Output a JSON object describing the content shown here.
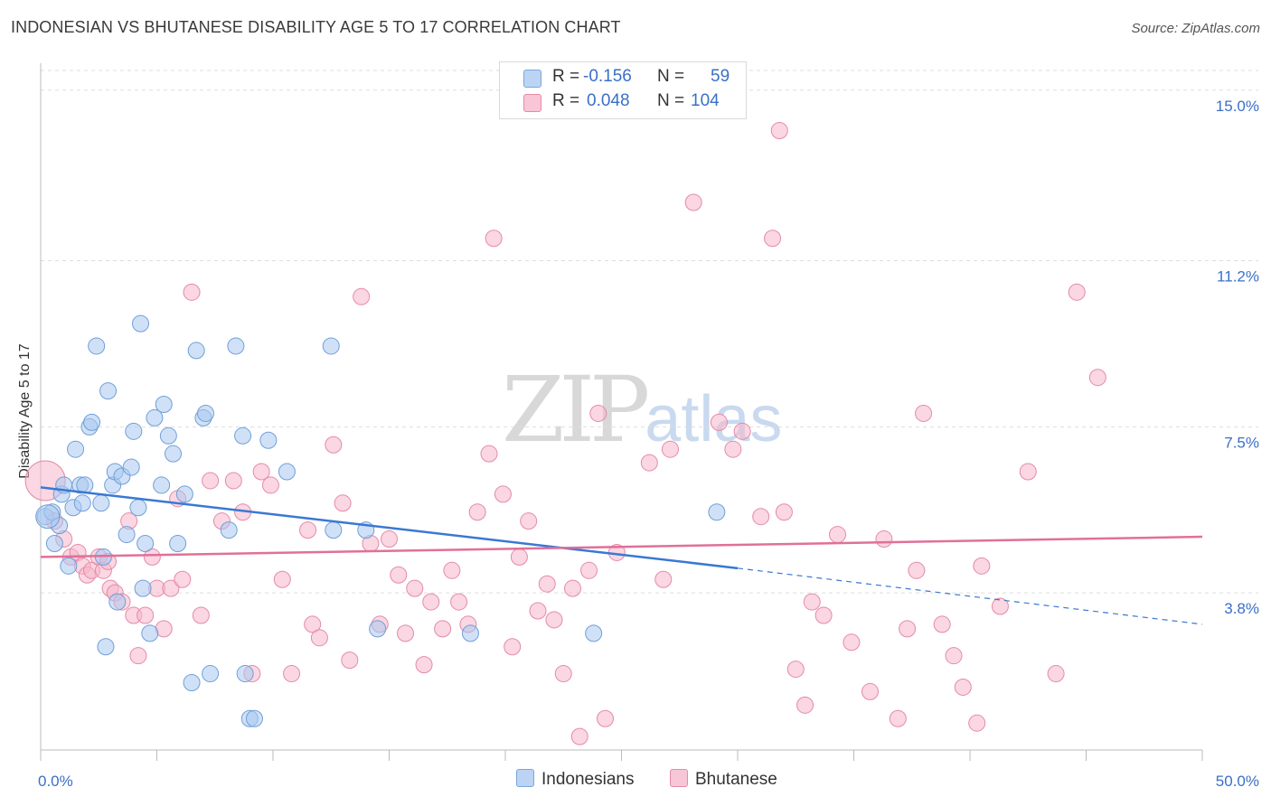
{
  "header": {
    "title": "INDONESIAN VS BHUTANESE DISABILITY AGE 5 TO 17 CORRELATION CHART",
    "source": "Source: ZipAtlas.com"
  },
  "watermark": {
    "zip": "ZIP",
    "atlas": "atlas"
  },
  "legend": {
    "rows": [
      {
        "r_label": "R =",
        "r_value": "-0.156",
        "n_label": "N =",
        "n_value": "59"
      },
      {
        "r_label": "R =",
        "r_value": "0.048",
        "n_label": "N =",
        "n_value": "104"
      }
    ]
  },
  "bottom_legend": {
    "indonesians": "Indonesians",
    "bhutanese": "Bhutanese"
  },
  "colors": {
    "indonesians_fill": "#a9c8f0",
    "indonesians_stroke": "#6f9fd8",
    "indonesians_line": "#3a78d4",
    "bhutanese_fill": "#f5b7ca",
    "bhutanese_stroke": "#e58aa8",
    "bhutanese_line": "#e0709a",
    "tick_label": "#3a6fc8",
    "grid": "#dddddd"
  },
  "chart_data": {
    "type": "scatter",
    "title": "INDONESIAN VS BHUTANESE DISABILITY AGE 5 TO 17 CORRELATION CHART",
    "xlabel": "",
    "ylabel": "Disability Age 5 to 17",
    "xlim": [
      0,
      50
    ],
    "ylim": [
      0.3,
      15.6
    ],
    "x_tick_labels": [
      {
        "value": 0,
        "label": "0.0%"
      },
      {
        "value": 50,
        "label": "50.0%"
      }
    ],
    "y_tick_labels": [
      {
        "value": 3.8,
        "label": "3.8%"
      },
      {
        "value": 7.5,
        "label": "7.5%"
      },
      {
        "value": 11.2,
        "label": "11.2%"
      },
      {
        "value": 15.0,
        "label": "15.0%"
      }
    ],
    "grid": "horizontal dashed",
    "legend_position": "top-center",
    "series": [
      {
        "name": "Indonesians",
        "r": -0.156,
        "n": 59,
        "trend": {
          "x0": 0,
          "y0": 6.15,
          "x1": 30,
          "y1": 4.35,
          "dashed_to_x": 50,
          "dashed_to_y": 3.1
        },
        "points": [
          [
            0.2,
            5.5
          ],
          [
            0.5,
            5.6
          ],
          [
            0.6,
            4.9
          ],
          [
            0.8,
            5.3
          ],
          [
            0.9,
            6.0
          ],
          [
            1.0,
            6.2
          ],
          [
            1.2,
            4.4
          ],
          [
            1.4,
            5.7
          ],
          [
            1.5,
            7.0
          ],
          [
            1.7,
            6.2
          ],
          [
            1.8,
            5.8
          ],
          [
            1.9,
            6.2
          ],
          [
            2.1,
            7.5
          ],
          [
            2.2,
            7.6
          ],
          [
            2.4,
            9.3
          ],
          [
            2.6,
            5.8
          ],
          [
            2.7,
            4.6
          ],
          [
            2.8,
            2.6
          ],
          [
            2.9,
            8.3
          ],
          [
            3.1,
            6.2
          ],
          [
            3.2,
            6.5
          ],
          [
            3.3,
            3.6
          ],
          [
            3.5,
            6.4
          ],
          [
            3.7,
            5.1
          ],
          [
            3.9,
            6.6
          ],
          [
            4.0,
            7.4
          ],
          [
            4.2,
            5.7
          ],
          [
            4.3,
            9.8
          ],
          [
            4.4,
            3.9
          ],
          [
            4.5,
            4.9
          ],
          [
            4.7,
            2.9
          ],
          [
            4.9,
            7.7
          ],
          [
            5.2,
            6.2
          ],
          [
            5.3,
            8.0
          ],
          [
            5.5,
            7.3
          ],
          [
            5.7,
            6.9
          ],
          [
            5.9,
            4.9
          ],
          [
            6.2,
            6.0
          ],
          [
            6.5,
            1.8
          ],
          [
            6.7,
            9.2
          ],
          [
            7.0,
            7.7
          ],
          [
            7.1,
            7.8
          ],
          [
            7.3,
            2.0
          ],
          [
            8.1,
            5.2
          ],
          [
            8.4,
            9.3
          ],
          [
            8.7,
            7.3
          ],
          [
            8.8,
            2.0
          ],
          [
            9.0,
            1.0
          ],
          [
            9.2,
            1.0
          ],
          [
            9.8,
            7.2
          ],
          [
            10.6,
            6.5
          ],
          [
            12.5,
            9.3
          ],
          [
            12.6,
            5.2
          ],
          [
            14.0,
            5.2
          ],
          [
            14.5,
            3.0
          ],
          [
            18.5,
            2.9
          ],
          [
            23.8,
            2.9
          ],
          [
            29.1,
            5.6
          ],
          [
            0.3,
            5.5
          ]
        ]
      },
      {
        "name": "Bhutanese",
        "r": 0.048,
        "n": 104,
        "trend": {
          "x0": 0,
          "y0": 4.6,
          "x1": 50,
          "y1": 5.05
        },
        "points": [
          [
            0.6,
            5.4
          ],
          [
            1.0,
            5.0
          ],
          [
            1.3,
            4.6
          ],
          [
            1.6,
            4.7
          ],
          [
            1.8,
            4.4
          ],
          [
            2.0,
            4.2
          ],
          [
            2.2,
            4.3
          ],
          [
            2.5,
            4.6
          ],
          [
            2.7,
            4.3
          ],
          [
            2.9,
            4.5
          ],
          [
            3.0,
            3.9
          ],
          [
            3.2,
            3.8
          ],
          [
            3.5,
            3.6
          ],
          [
            3.8,
            5.4
          ],
          [
            4.0,
            3.3
          ],
          [
            4.2,
            2.4
          ],
          [
            4.5,
            3.3
          ],
          [
            4.8,
            4.6
          ],
          [
            5.0,
            3.9
          ],
          [
            5.3,
            3.0
          ],
          [
            5.6,
            3.9
          ],
          [
            5.9,
            5.9
          ],
          [
            6.1,
            4.1
          ],
          [
            6.5,
            10.5
          ],
          [
            6.9,
            3.3
          ],
          [
            7.3,
            6.3
          ],
          [
            7.8,
            5.4
          ],
          [
            8.3,
            6.3
          ],
          [
            8.7,
            5.6
          ],
          [
            9.1,
            2.0
          ],
          [
            9.5,
            6.5
          ],
          [
            9.9,
            6.2
          ],
          [
            10.4,
            4.1
          ],
          [
            10.8,
            2.0
          ],
          [
            11.5,
            5.2
          ],
          [
            11.7,
            3.1
          ],
          [
            12.0,
            2.8
          ],
          [
            12.6,
            7.1
          ],
          [
            13.0,
            5.8
          ],
          [
            13.3,
            2.3
          ],
          [
            13.8,
            10.4
          ],
          [
            14.2,
            4.9
          ],
          [
            14.6,
            3.1
          ],
          [
            15.0,
            5.0
          ],
          [
            15.4,
            4.2
          ],
          [
            15.7,
            2.9
          ],
          [
            16.1,
            3.9
          ],
          [
            16.5,
            2.2
          ],
          [
            16.8,
            3.6
          ],
          [
            17.3,
            3.0
          ],
          [
            17.7,
            4.3
          ],
          [
            18.0,
            3.6
          ],
          [
            18.4,
            3.1
          ],
          [
            18.8,
            5.6
          ],
          [
            19.3,
            6.9
          ],
          [
            19.5,
            11.7
          ],
          [
            19.9,
            6.0
          ],
          [
            20.3,
            2.6
          ],
          [
            20.6,
            4.6
          ],
          [
            21.0,
            5.4
          ],
          [
            21.4,
            3.4
          ],
          [
            21.8,
            4.0
          ],
          [
            22.1,
            3.2
          ],
          [
            22.5,
            2.0
          ],
          [
            22.9,
            3.9
          ],
          [
            23.2,
            0.6
          ],
          [
            23.6,
            4.3
          ],
          [
            24.0,
            7.8
          ],
          [
            24.3,
            1.0
          ],
          [
            24.8,
            4.7
          ],
          [
            26.2,
            6.7
          ],
          [
            26.8,
            4.1
          ],
          [
            27.1,
            7.0
          ],
          [
            28.1,
            12.5
          ],
          [
            29.2,
            7.6
          ],
          [
            29.8,
            7.0
          ],
          [
            30.2,
            7.4
          ],
          [
            31.0,
            5.5
          ],
          [
            31.5,
            11.7
          ],
          [
            31.8,
            14.1
          ],
          [
            32.0,
            5.6
          ],
          [
            32.5,
            2.1
          ],
          [
            32.9,
            1.3
          ],
          [
            33.2,
            3.6
          ],
          [
            33.7,
            3.3
          ],
          [
            34.3,
            5.1
          ],
          [
            34.9,
            2.7
          ],
          [
            35.7,
            1.6
          ],
          [
            36.3,
            5.0
          ],
          [
            36.9,
            1.0
          ],
          [
            37.3,
            3.0
          ],
          [
            37.7,
            4.3
          ],
          [
            38.0,
            7.8
          ],
          [
            38.8,
            3.1
          ],
          [
            39.3,
            2.4
          ],
          [
            39.7,
            1.7
          ],
          [
            40.3,
            0.9
          ],
          [
            40.5,
            4.4
          ],
          [
            41.3,
            3.5
          ],
          [
            42.5,
            6.5
          ],
          [
            43.7,
            2.0
          ],
          [
            44.6,
            10.5
          ],
          [
            45.5,
            8.6
          ],
          [
            0.2,
            6.3
          ]
        ]
      }
    ]
  }
}
